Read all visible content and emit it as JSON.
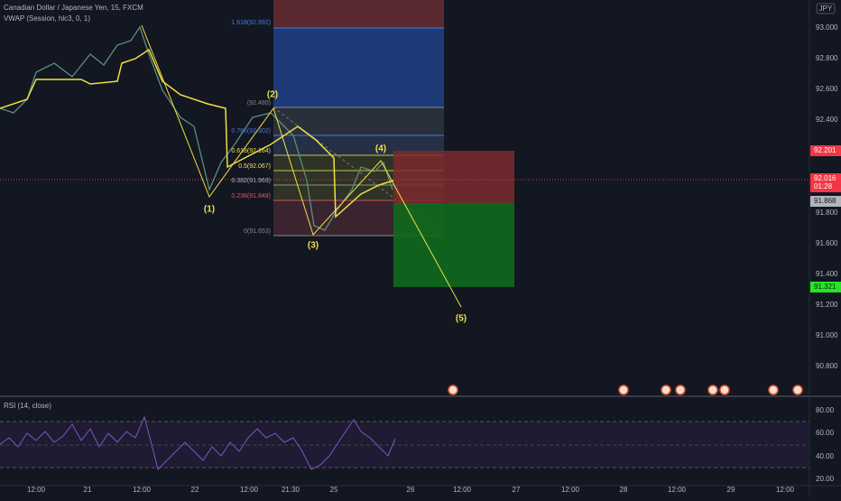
{
  "header": {
    "symbol": "Canadian Dollar / Japanese Yen, 15, FXCM",
    "indicator": "VWAP (Session, hlc3, 0, 1)",
    "currency": "JPY"
  },
  "price_axis": [
    "93.000",
    "92.800",
    "92.600",
    "92.400",
    "91.800",
    "91.600",
    "91.400",
    "91.200",
    "91.000",
    "90.800"
  ],
  "badges": [
    {
      "label": "92.201",
      "color": "#f23645"
    },
    {
      "label": "92.016",
      "color": "#f23645"
    },
    {
      "label": "01:28",
      "color": "#f23645"
    },
    {
      "label": "91.868",
      "color": "#b2b5be"
    },
    {
      "label": "91.321",
      "color": "#22e822"
    }
  ],
  "fib_levels": [
    "1.618(92.992)",
    "(92.480)",
    "0.786(92.302)",
    "0.618(92.164)",
    "0.5(92.067)",
    "0.382(91.969)",
    "0.236(91.848)",
    "0(91.653)"
  ],
  "wave_labels": [
    "(1)",
    "(2)",
    "(3)",
    "(4)",
    "(5)"
  ],
  "rsi": {
    "title": "RSI (14, close)",
    "axis": [
      "80.00",
      "60.00",
      "40.00",
      "20.00"
    ]
  },
  "time_axis": [
    "12:00",
    "21",
    "12:00",
    "22",
    "12:00",
    "21:30",
    "25",
    "26",
    "12:00",
    "27",
    "12:00",
    "28",
    "12:00",
    "29",
    "12:00"
  ]
}
